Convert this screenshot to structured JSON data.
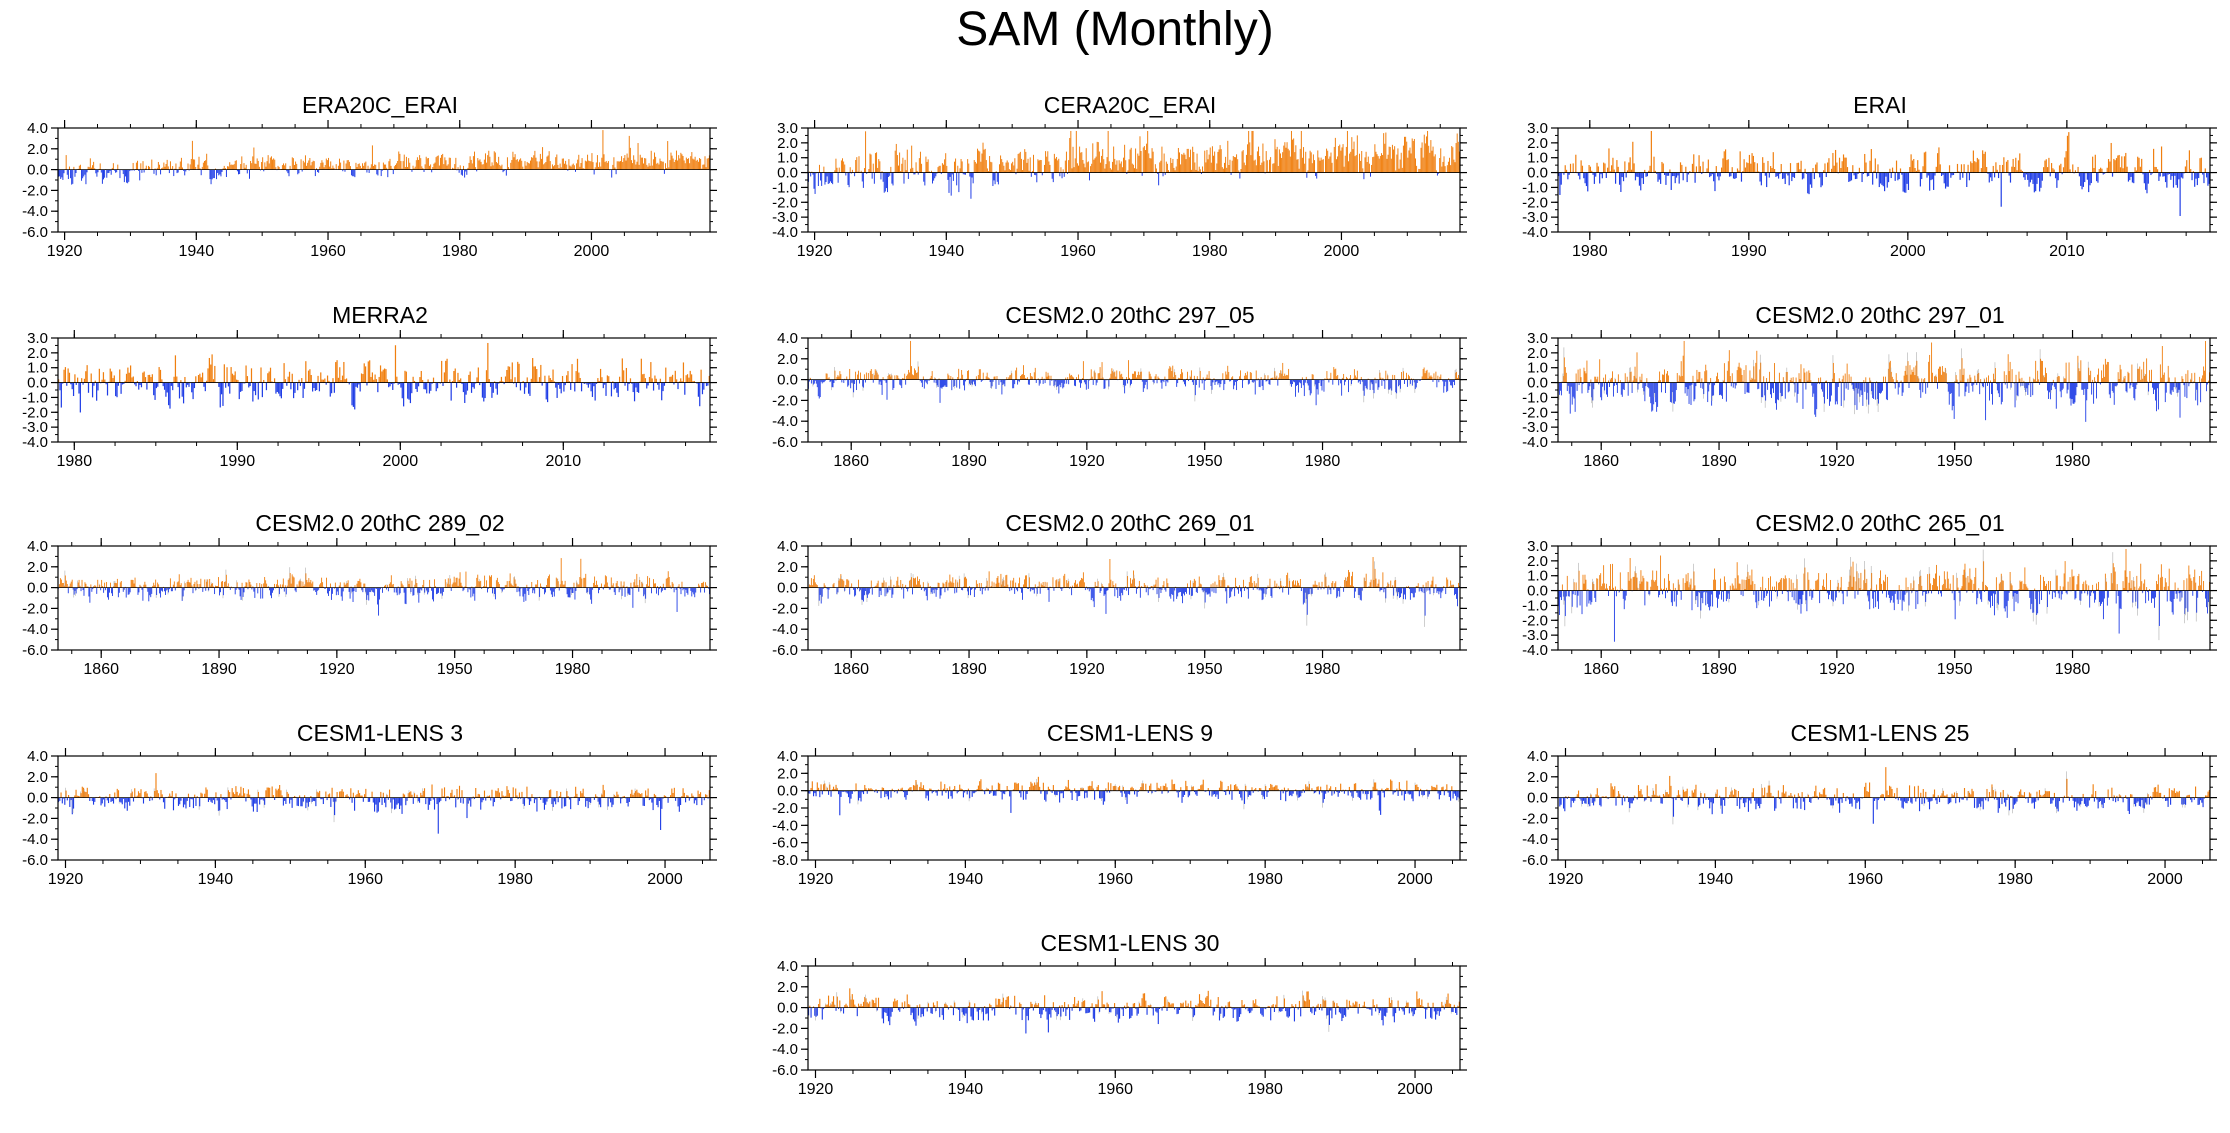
{
  "page_title": "SAM (Monthly)",
  "colors": {
    "positive": "#f07f0f",
    "negative": "#1f3de6",
    "faint": "#b9b9b9",
    "axis": "#000000"
  },
  "chart_data": [
    {
      "id": "p1",
      "type": "bar",
      "title": "ERA20C_ERAI",
      "x_range": [
        1919,
        2018
      ],
      "ylim": [
        -6,
        4
      ],
      "y_ticks": [
        "4.0",
        "2.0",
        "0.0",
        "-2.0",
        "-4.0",
        "-6.0"
      ],
      "y_tick_values": [
        4,
        2,
        0,
        -2,
        -4,
        -6
      ],
      "x_ticks": [
        1920,
        1940,
        1960,
        1980,
        2000
      ],
      "pos_amp": 0.8,
      "neg_amp": 1.0,
      "trend": 0.012,
      "seed": 11,
      "faint": false
    },
    {
      "id": "p2",
      "type": "bar",
      "title": "CERA20C_ERAI",
      "x_range": [
        1919,
        2018
      ],
      "ylim": [
        -4,
        3
      ],
      "y_ticks": [
        "3.0",
        "2.0",
        "1.0",
        "0.0",
        "-1.0",
        "-2.0",
        "-3.0",
        "-4.0"
      ],
      "y_tick_values": [
        3,
        2,
        1,
        0,
        -1,
        -2,
        -3,
        -4
      ],
      "x_ticks": [
        1920,
        1940,
        1960,
        1980,
        2000
      ],
      "pos_amp": 1.0,
      "neg_amp": 1.1,
      "trend": 0.015,
      "seed": 23,
      "faint": false
    },
    {
      "id": "p3",
      "type": "bar",
      "title": "ERAI",
      "x_range": [
        1978,
        2019
      ],
      "ylim": [
        -4,
        3
      ],
      "y_ticks": [
        "3.0",
        "2.0",
        "1.0",
        "0.0",
        "-1.0",
        "-2.0",
        "-3.0",
        "-4.0"
      ],
      "y_tick_values": [
        3,
        2,
        1,
        0,
        -1,
        -2,
        -3,
        -4
      ],
      "x_ticks": [
        1980,
        1990,
        2000,
        2010
      ],
      "pos_amp": 1.1,
      "neg_amp": 1.0,
      "trend": 0.0,
      "seed": 37,
      "faint": false
    },
    {
      "id": "p4",
      "type": "bar",
      "title": "MERRA2",
      "x_range": [
        1979,
        2019
      ],
      "ylim": [
        -4,
        3
      ],
      "y_ticks": [
        "3.0",
        "2.0",
        "1.0",
        "0.0",
        "-1.0",
        "-2.0",
        "-3.0",
        "-4.0"
      ],
      "y_tick_values": [
        3,
        2,
        1,
        0,
        -1,
        -2,
        -3,
        -4
      ],
      "x_ticks": [
        1980,
        1990,
        2000,
        2010
      ],
      "pos_amp": 1.1,
      "neg_amp": 1.1,
      "trend": 0.0,
      "seed": 41,
      "faint": false
    },
    {
      "id": "p5",
      "type": "bar",
      "title": "CESM2.0 20thC 297_05",
      "x_range": [
        1849,
        2015
      ],
      "ylim": [
        -6,
        4
      ],
      "y_ticks": [
        "4.0",
        "2.0",
        "0.0",
        "-2.0",
        "-4.0",
        "-6.0"
      ],
      "y_tick_values": [
        4,
        2,
        0,
        -2,
        -4,
        -6
      ],
      "x_ticks": [
        1860,
        1890,
        1920,
        1950,
        1980
      ],
      "pos_amp": 0.9,
      "neg_amp": 1.0,
      "trend": 0.0,
      "seed": 53,
      "faint": true
    },
    {
      "id": "p6",
      "type": "bar",
      "title": "CESM2.0 20thC 297_01",
      "x_range": [
        1849,
        2015
      ],
      "ylim": [
        -4,
        3
      ],
      "y_ticks": [
        "3.0",
        "2.0",
        "1.0",
        "0.0",
        "-1.0",
        "-2.0",
        "-3.0",
        "-4.0"
      ],
      "y_tick_values": [
        3,
        2,
        1,
        0,
        -1,
        -2,
        -3,
        -4
      ],
      "x_ticks": [
        1860,
        1890,
        1920,
        1950,
        1980
      ],
      "pos_amp": 1.2,
      "neg_amp": 1.2,
      "trend": 0.0,
      "seed": 67,
      "faint": true
    },
    {
      "id": "p7",
      "type": "bar",
      "title": "CESM2.0 20thC 289_02",
      "x_range": [
        1849,
        2015
      ],
      "ylim": [
        -6,
        4
      ],
      "y_ticks": [
        "4.0",
        "2.0",
        "0.0",
        "-2.0",
        "-4.0",
        "-6.0"
      ],
      "y_tick_values": [
        4,
        2,
        0,
        -2,
        -4,
        -6
      ],
      "x_ticks": [
        1860,
        1890,
        1920,
        1950,
        1980
      ],
      "pos_amp": 0.9,
      "neg_amp": 1.0,
      "trend": 0.0,
      "seed": 71,
      "faint": true
    },
    {
      "id": "p8",
      "type": "bar",
      "title": "CESM2.0 20thC 269_01",
      "x_range": [
        1849,
        2015
      ],
      "ylim": [
        -6,
        4
      ],
      "y_ticks": [
        "4.0",
        "2.0",
        "0.0",
        "-2.0",
        "-4.0",
        "-6.0"
      ],
      "y_tick_values": [
        4,
        2,
        0,
        -2,
        -4,
        -6
      ],
      "x_ticks": [
        1860,
        1890,
        1920,
        1950,
        1980
      ],
      "pos_amp": 0.9,
      "neg_amp": 1.0,
      "trend": 0.0,
      "seed": 83,
      "faint": true
    },
    {
      "id": "p9",
      "type": "bar",
      "title": "CESM2.0 20thC 265_01",
      "x_range": [
        1849,
        2015
      ],
      "ylim": [
        -4,
        3
      ],
      "y_ticks": [
        "3.0",
        "2.0",
        "1.0",
        "0.0",
        "-1.0",
        "-2.0",
        "-3.0",
        "-4.0"
      ],
      "y_tick_values": [
        3,
        2,
        1,
        0,
        -1,
        -2,
        -3,
        -4
      ],
      "x_ticks": [
        1860,
        1890,
        1920,
        1950,
        1980
      ],
      "pos_amp": 1.2,
      "neg_amp": 1.2,
      "trend": 0.0,
      "seed": 97,
      "faint": true
    },
    {
      "id": "p10",
      "type": "bar",
      "title": "CESM1-LENS 3",
      "x_range": [
        1919,
        2006
      ],
      "ylim": [
        -6,
        4
      ],
      "y_ticks": [
        "4.0",
        "2.0",
        "0.0",
        "-2.0",
        "-4.0",
        "-6.0"
      ],
      "y_tick_values": [
        4,
        2,
        0,
        -2,
        -4,
        -6
      ],
      "x_ticks": [
        1920,
        1940,
        1960,
        1980,
        2000
      ],
      "pos_amp": 0.9,
      "neg_amp": 1.0,
      "trend": 0.0,
      "seed": 101,
      "faint": true
    },
    {
      "id": "p11",
      "type": "bar",
      "title": "CESM1-LENS 9",
      "x_range": [
        1919,
        2006
      ],
      "ylim": [
        -8,
        4
      ],
      "y_ticks": [
        "4.0",
        "2.0",
        "0.0",
        "-2.0",
        "-4.0",
        "-6.0",
        "-8.0"
      ],
      "y_tick_values": [
        4,
        2,
        0,
        -2,
        -4,
        -6,
        -8
      ],
      "x_ticks": [
        1920,
        1940,
        1960,
        1980,
        2000
      ],
      "pos_amp": 0.9,
      "neg_amp": 1.0,
      "trend": 0.0,
      "seed": 113,
      "faint": true
    },
    {
      "id": "p12",
      "type": "bar",
      "title": "CESM1-LENS 25",
      "x_range": [
        1919,
        2006
      ],
      "ylim": [
        -6,
        4
      ],
      "y_ticks": [
        "4.0",
        "2.0",
        "0.0",
        "-2.0",
        "-4.0",
        "-6.0"
      ],
      "y_tick_values": [
        4,
        2,
        0,
        -2,
        -4,
        -6
      ],
      "x_ticks": [
        1920,
        1940,
        1960,
        1980,
        2000
      ],
      "pos_amp": 0.9,
      "neg_amp": 1.0,
      "trend": 0.0,
      "seed": 127,
      "faint": true
    },
    {
      "id": "p13",
      "type": "bar",
      "title": "CESM1-LENS 30",
      "x_range": [
        1919,
        2006
      ],
      "ylim": [
        -6,
        4
      ],
      "y_ticks": [
        "4.0",
        "2.0",
        "0.0",
        "-2.0",
        "-4.0",
        "-6.0"
      ],
      "y_tick_values": [
        4,
        2,
        0,
        -2,
        -4,
        -6
      ],
      "x_ticks": [
        1920,
        1940,
        1960,
        1980,
        2000
      ],
      "pos_amp": 0.9,
      "neg_amp": 1.0,
      "trend": 0.0,
      "seed": 131,
      "faint": true
    }
  ]
}
